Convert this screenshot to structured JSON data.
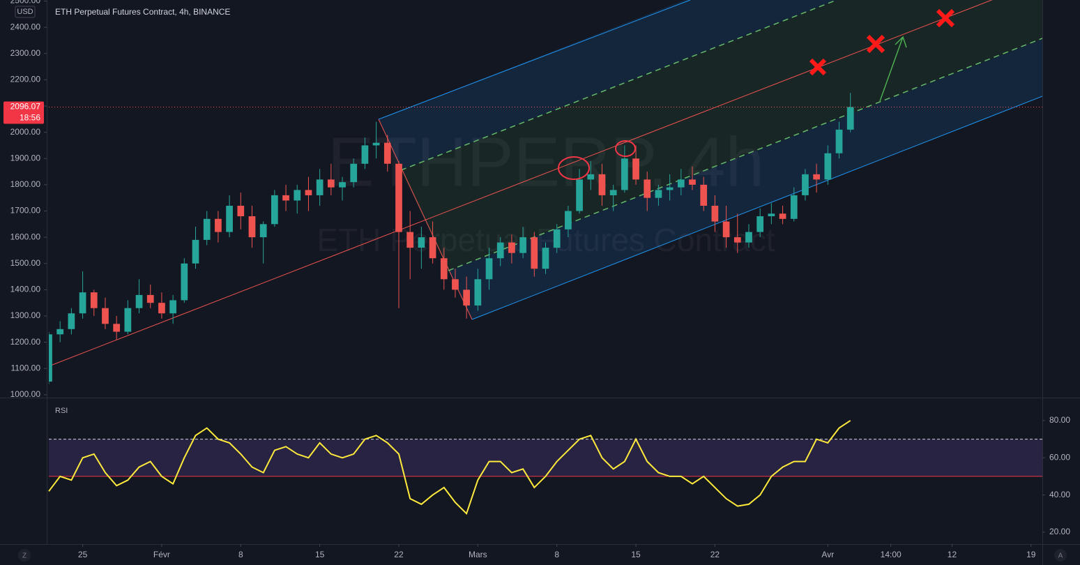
{
  "chart_data": [
    {
      "type": "candlestick",
      "title": "ETH Perpetual Futures Contract, 4h, BINANCE",
      "currency": "USD",
      "watermark": [
        "ETHPERP, 4h",
        "ETH Perpetual Futures Contract"
      ],
      "up_color": "#26a69a",
      "down_color": "#ef5350",
      "x": [
        0,
        1,
        2,
        3,
        4,
        5,
        6,
        7,
        8,
        9,
        10,
        11,
        12,
        13,
        14,
        15,
        16,
        17,
        18,
        19,
        20,
        21,
        22,
        23,
        24,
        25,
        26,
        27,
        28,
        29,
        30,
        31,
        32,
        33,
        34,
        35,
        36,
        37,
        38,
        39,
        40,
        41,
        42,
        43,
        44,
        45,
        46,
        47,
        48,
        49,
        50,
        51,
        52,
        53,
        54,
        55,
        56,
        57,
        58,
        59,
        60,
        61,
        62,
        63,
        64,
        65,
        66,
        67,
        68,
        69,
        70,
        71
      ],
      "open": [
        1050,
        1230,
        1250,
        1310,
        1390,
        1330,
        1270,
        1240,
        1330,
        1380,
        1350,
        1310,
        1360,
        1500,
        1590,
        1670,
        1620,
        1720,
        1680,
        1600,
        1650,
        1760,
        1740,
        1780,
        1760,
        1820,
        1790,
        1810,
        1880,
        1950,
        1960,
        1880,
        1620,
        1560,
        1600,
        1520,
        1440,
        1400,
        1340,
        1440,
        1520,
        1580,
        1540,
        1600,
        1480,
        1560,
        1630,
        1700,
        1820,
        1840,
        1760,
        1780,
        1900,
        1820,
        1750,
        1780,
        1790,
        1820,
        1800,
        1720,
        1660,
        1600,
        1580,
        1620,
        1680,
        1690,
        1670,
        1760,
        1840,
        1820,
        1920,
        2010
      ],
      "high": [
        1240,
        1280,
        1330,
        1470,
        1400,
        1370,
        1300,
        1360,
        1440,
        1420,
        1390,
        1380,
        1520,
        1640,
        1700,
        1700,
        1760,
        1770,
        1720,
        1660,
        1780,
        1800,
        1800,
        1830,
        1860,
        1880,
        1830,
        1900,
        1980,
        2040,
        1990,
        1890,
        1700,
        1640,
        1660,
        1560,
        1480,
        1450,
        1480,
        1560,
        1600,
        1610,
        1640,
        1620,
        1580,
        1650,
        1720,
        1860,
        1890,
        1880,
        1800,
        1950,
        1950,
        1850,
        1800,
        1840,
        1860,
        1870,
        1830,
        1760,
        1720,
        1690,
        1650,
        1710,
        1730,
        1720,
        1790,
        1860,
        1880,
        1950,
        2040,
        2150
      ],
      "low": [
        1040,
        1200,
        1230,
        1290,
        1300,
        1250,
        1210,
        1230,
        1310,
        1330,
        1290,
        1270,
        1350,
        1480,
        1570,
        1580,
        1600,
        1630,
        1560,
        1500,
        1640,
        1700,
        1690,
        1700,
        1720,
        1760,
        1740,
        1790,
        1860,
        1900,
        1850,
        1330,
        1440,
        1480,
        1500,
        1400,
        1370,
        1290,
        1320,
        1400,
        1490,
        1500,
        1520,
        1450,
        1460,
        1540,
        1600,
        1690,
        1780,
        1720,
        1700,
        1770,
        1800,
        1700,
        1720,
        1740,
        1760,
        1780,
        1700,
        1620,
        1560,
        1540,
        1560,
        1600,
        1650,
        1650,
        1660,
        1740,
        1770,
        1800,
        1900,
        2000
      ],
      "close": [
        1230,
        1250,
        1310,
        1390,
        1330,
        1270,
        1240,
        1330,
        1380,
        1350,
        1310,
        1360,
        1500,
        1590,
        1670,
        1620,
        1720,
        1680,
        1600,
        1650,
        1760,
        1740,
        1780,
        1760,
        1820,
        1790,
        1810,
        1880,
        1950,
        1960,
        1880,
        1620,
        1560,
        1600,
        1520,
        1440,
        1400,
        1340,
        1440,
        1520,
        1580,
        1540,
        1600,
        1480,
        1560,
        1630,
        1700,
        1820,
        1840,
        1760,
        1780,
        1900,
        1820,
        1750,
        1780,
        1790,
        1820,
        1800,
        1720,
        1660,
        1600,
        1580,
        1620,
        1680,
        1690,
        1670,
        1760,
        1840,
        1820,
        1920,
        2010,
        2096.07
      ],
      "last_price": 2096.07,
      "countdown": "18:56",
      "xlim": [
        0,
        88
      ],
      "xticks": [
        {
          "value": 3,
          "label": "25"
        },
        {
          "value": 10,
          "label": "Févr"
        },
        {
          "value": 17,
          "label": "8"
        },
        {
          "value": 24,
          "label": "15"
        },
        {
          "value": 31,
          "label": "22"
        },
        {
          "value": 38,
          "label": "Mars"
        },
        {
          "value": 45,
          "label": "8"
        },
        {
          "value": 52,
          "label": "15"
        },
        {
          "value": 59,
          "label": "22"
        },
        {
          "value": 69,
          "label": "Avr"
        },
        {
          "value": 74.58,
          "label": "14:00"
        },
        {
          "value": 80,
          "label": "12"
        },
        {
          "value": 87,
          "label": "19"
        }
      ],
      "ylim": [
        989,
        2504
      ],
      "yticks": [
        {
          "value": 1000,
          "label": "1000.00"
        },
        {
          "value": 1100,
          "label": "1100.00"
        },
        {
          "value": 1200,
          "label": "1200.00"
        },
        {
          "value": 1300,
          "label": "1300.00"
        },
        {
          "value": 1400,
          "label": "1400.00"
        },
        {
          "value": 1500,
          "label": "1500.00"
        },
        {
          "value": 1600,
          "label": "1600.00"
        },
        {
          "value": 1700,
          "label": "1700.00"
        },
        {
          "value": 1800,
          "label": "1800.00"
        },
        {
          "value": 1900,
          "label": "1900.00"
        },
        {
          "value": 2000,
          "label": "2000.00"
        },
        {
          "value": 2100,
          "label": "2100.00"
        },
        {
          "value": 2200,
          "label": "2200.00"
        },
        {
          "value": 2300,
          "label": "2300.00"
        },
        {
          "value": 2400,
          "label": "2400.00"
        },
        {
          "value": 2500,
          "label": "2500.00"
        }
      ]
    },
    {
      "type": "line",
      "title": "RSI",
      "color": "#ffeb3b",
      "band_color": "#7e57c2",
      "upper_band": 70,
      "lower_band": 50,
      "x": [
        0,
        1,
        2,
        3,
        4,
        5,
        6,
        7,
        8,
        9,
        10,
        11,
        12,
        13,
        14,
        15,
        16,
        17,
        18,
        19,
        20,
        21,
        22,
        23,
        24,
        25,
        26,
        27,
        28,
        29,
        30,
        31,
        32,
        33,
        34,
        35,
        36,
        37,
        38,
        39,
        40,
        41,
        42,
        43,
        44,
        45,
        46,
        47,
        48,
        49,
        50,
        51,
        52,
        53,
        54,
        55,
        56,
        57,
        58,
        59,
        60,
        61,
        62,
        63,
        64,
        65,
        66,
        67,
        68,
        69,
        70,
        71
      ],
      "values": [
        42,
        50,
        48,
        60,
        62,
        52,
        45,
        48,
        55,
        58,
        50,
        46,
        60,
        72,
        76,
        70,
        68,
        62,
        55,
        52,
        64,
        66,
        62,
        60,
        68,
        62,
        60,
        62,
        70,
        72,
        68,
        62,
        38,
        35,
        40,
        44,
        36,
        30,
        48,
        58,
        58,
        52,
        54,
        44,
        50,
        58,
        64,
        70,
        72,
        60,
        54,
        58,
        70,
        58,
        52,
        50,
        50,
        46,
        50,
        44,
        38,
        34,
        35,
        40,
        50,
        55,
        58,
        58,
        70,
        68,
        76,
        80
      ],
      "ylim": [
        13.6,
        91.6
      ],
      "yticks": [
        {
          "value": 20,
          "label": "20.00"
        },
        {
          "value": 40,
          "label": "40.00"
        },
        {
          "value": 60,
          "label": "60.00"
        },
        {
          "value": 80,
          "label": "80.00"
        }
      ]
    }
  ],
  "scale_buttons": [
    "Z",
    "A"
  ]
}
